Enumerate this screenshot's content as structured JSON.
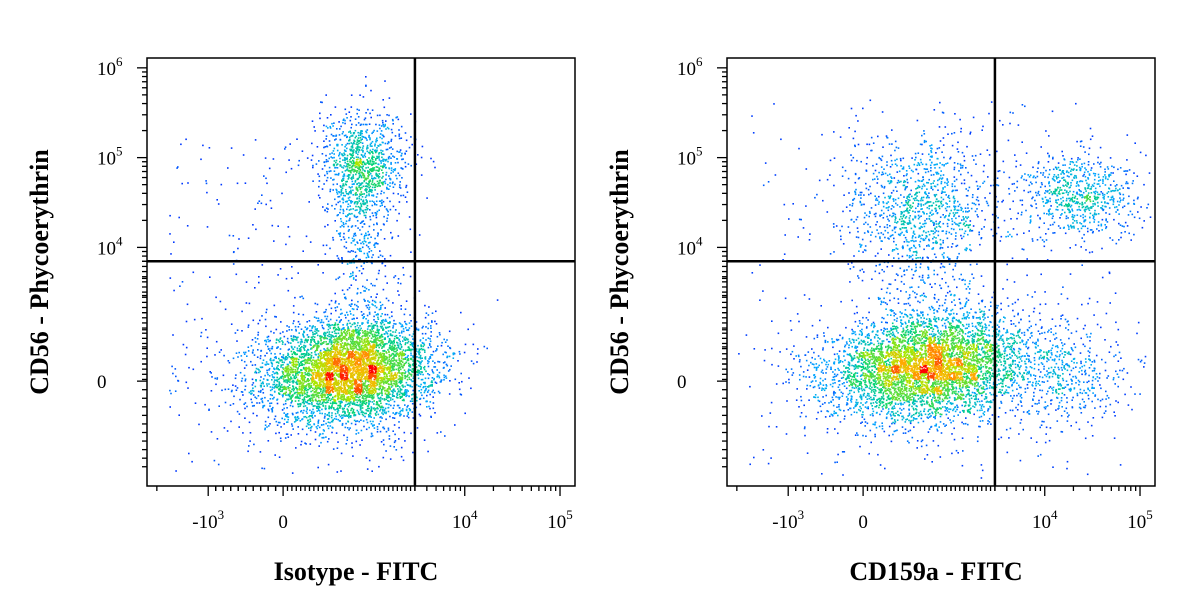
{
  "chart_data": [
    {
      "type": "scatter",
      "style": "density-colored flow cytometry dot plot",
      "xlabel": "Isotype - FITC",
      "ylabel": "CD56 - Phycoerythrin",
      "x_scale": "biexponential",
      "y_scale": "biexponential",
      "x_tick_labels": [
        {
          "value": -1000,
          "base": "-10",
          "exp": "3"
        },
        {
          "value": 0,
          "base": "0",
          "exp": ""
        },
        {
          "value": 10000,
          "base": "10",
          "exp": "4"
        },
        {
          "value": 100000,
          "base": "10",
          "exp": "5"
        }
      ],
      "y_tick_labels": [
        {
          "value": 0,
          "base": "0",
          "exp": ""
        },
        {
          "value": 10000,
          "base": "10",
          "exp": "4"
        },
        {
          "value": 100000,
          "base": "10",
          "exp": "5"
        },
        {
          "value": 1000000,
          "base": "10",
          "exp": "6"
        }
      ],
      "gate": {
        "x": 3000,
        "y": 7000
      },
      "populations": [
        {
          "name_hint": "CD56-dim/neg, FITC-neg",
          "center": [
            700,
            400
          ],
          "spread": "wide",
          "relative_count": 0.78
        },
        {
          "name_hint": "CD56-bright, FITC-neg",
          "center": [
            900,
            60000
          ],
          "spread": "narrow",
          "relative_count": 0.17
        },
        {
          "name_hint": "scattered",
          "relative_count": 0.05
        }
      ]
    },
    {
      "type": "scatter",
      "style": "density-colored flow cytometry dot plot",
      "xlabel": "CD159a - FITC",
      "ylabel": "CD56 - Phycoerythrin",
      "x_scale": "biexponential",
      "y_scale": "biexponential",
      "x_tick_labels": [
        {
          "value": -1000,
          "base": "-10",
          "exp": "3"
        },
        {
          "value": 0,
          "base": "0",
          "exp": ""
        },
        {
          "value": 10000,
          "base": "10",
          "exp": "4"
        },
        {
          "value": 100000,
          "base": "10",
          "exp": "5"
        }
      ],
      "y_tick_labels": [
        {
          "value": 0,
          "base": "0",
          "exp": ""
        },
        {
          "value": 10000,
          "base": "10",
          "exp": "4"
        },
        {
          "value": 100000,
          "base": "10",
          "exp": "5"
        },
        {
          "value": 1000000,
          "base": "10",
          "exp": "6"
        }
      ],
      "gate": {
        "x": 3000,
        "y": 7000
      },
      "populations": [
        {
          "name_hint": "CD56-dim/neg, CD159a-neg",
          "center": [
            1000,
            400
          ],
          "spread": "wide",
          "relative_count": 0.68
        },
        {
          "name_hint": "CD56-bright, CD159a-neg",
          "center": [
            800,
            30000
          ],
          "spread": "wide",
          "relative_count": 0.14
        },
        {
          "name_hint": "CD56-bright, CD159a-pos",
          "center": [
            30000,
            35000
          ],
          "spread": "medium",
          "relative_count": 0.09
        },
        {
          "name_hint": "CD56-dim, CD159a-pos",
          "center": [
            25000,
            300
          ],
          "spread": "medium",
          "relative_count": 0.06
        },
        {
          "name_hint": "scattered",
          "relative_count": 0.03
        }
      ]
    }
  ]
}
